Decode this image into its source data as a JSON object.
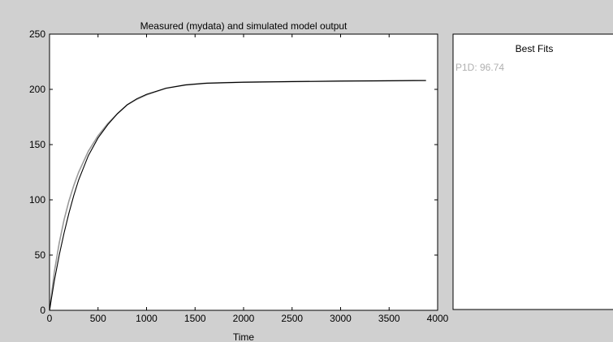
{
  "chart_data": [
    {
      "type": "line",
      "title": "Measured (mydata) and simulated model output",
      "xlabel": "Time",
      "ylabel": "",
      "xlim": [
        0,
        4000
      ],
      "ylim": [
        0,
        250
      ],
      "xticks": [
        "0",
        "500",
        "1000",
        "1500",
        "2000",
        "2500",
        "3000",
        "3500",
        "4000"
      ],
      "yticks": [
        "0",
        "50",
        "100",
        "150",
        "200",
        "250"
      ],
      "grid": false,
      "series": [
        {
          "color": "#9a9a9a",
          "x": [
            0,
            50,
            100,
            150,
            200,
            250,
            300,
            400,
            500,
            600,
            700,
            800,
            900,
            1000,
            1200,
            1400,
            1600,
            1800,
            2000,
            2500,
            3000,
            3500,
            3880
          ],
          "y": [
            0,
            35,
            61,
            82,
            99,
            113,
            125,
            144,
            158,
            169,
            178,
            186,
            191,
            195,
            201,
            204,
            205.5,
            206,
            206.5,
            207,
            207.5,
            207.8,
            208
          ]
        },
        {
          "color": "#000000",
          "x": [
            0,
            50,
            100,
            150,
            200,
            250,
            300,
            400,
            500,
            600,
            700,
            800,
            900,
            1000,
            1200,
            1400,
            1600,
            1800,
            2000,
            2500,
            3000,
            3500,
            3880
          ],
          "y": [
            0,
            27,
            50,
            70,
            88,
            104,
            118,
            140,
            156,
            168,
            178,
            186,
            191.5,
            195.5,
            201,
            204,
            205.5,
            206,
            206.5,
            207,
            207.5,
            207.8,
            208
          ]
        }
      ]
    }
  ],
  "legend_panel": {
    "title": "Best Fits",
    "entries": [
      "P1D: 96.74"
    ],
    "entry_color": "#b0b0b0"
  }
}
